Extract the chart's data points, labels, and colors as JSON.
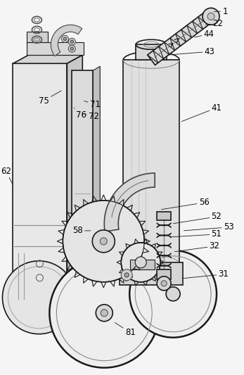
{
  "bg_color": "#f5f5f5",
  "line_color": "#1a1a1a",
  "label_fontsize": 8.5,
  "figsize": [
    3.47,
    5.33
  ],
  "dpi": 100
}
